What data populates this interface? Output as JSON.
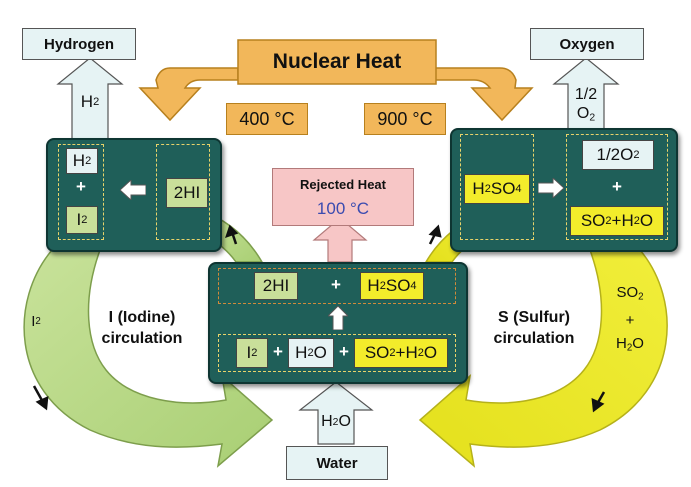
{
  "heat_source": {
    "label": "Nuclear Heat",
    "temp_left": "400 °C",
    "temp_right": "900 °C"
  },
  "products": {
    "hydrogen": "Hydrogen",
    "oxygen": "Oxygen",
    "water": "Water"
  },
  "rejected": {
    "label": "Rejected Heat",
    "temp": "100 °C"
  },
  "left_reactor": {
    "h2": "H",
    "h2_sub": "2",
    "plus": "+",
    "i2": "I",
    "i2_sub": "2",
    "hi": "2HI"
  },
  "right_reactor": {
    "h2so4_a": "H",
    "h2so4_sub1": "2",
    "h2so4_b": "SO",
    "h2so4_sub2": "4",
    "half_o2_a": "1/2O",
    "half_o2_sub": "2",
    "plus": "+",
    "so2h2o_a": "SO",
    "so2h2o_sub": "2",
    "so2h2o_b": "+H",
    "so2h2o_sub2": "2",
    "so2h2o_c": "O"
  },
  "center_reactor": {
    "hi": "2HI",
    "plus": "+",
    "h2so4_a": "H",
    "h2so4_sub1": "2",
    "h2so4_b": "SO",
    "h2so4_sub2": "4",
    "i2": "I",
    "i2_sub": "2",
    "h2o_a": "H",
    "h2o_sub": "2",
    "h2o_b": "O",
    "so2h2o_a": "SO",
    "so2h2o_sub": "2",
    "so2h2o_b": "+H",
    "so2h2o_sub2": "2",
    "so2h2o_c": "O"
  },
  "arrows": {
    "h2_a": "H",
    "h2_sub": "2",
    "o2_top": "1/2",
    "o2_a": "O",
    "o2_sub": "2",
    "water_in_a": "H",
    "water_in_sub": "2",
    "water_in_b": "O"
  },
  "cycles": {
    "iodine_line1": "I (Iodine)",
    "iodine_line2": "circulation",
    "iodine_flow_a": "I",
    "iodine_flow_sub": "2",
    "sulfur_line1": "S (Sulfur)",
    "sulfur_line2": "circulation",
    "sulfur_so_a": "SO",
    "sulfur_so_sub": "2",
    "sulfur_plus": "+",
    "sulfur_h2o_a": "H",
    "sulfur_h2o_sub": "2",
    "sulfur_h2o_b": "O"
  },
  "colors": {
    "reactor": "#1f5f59",
    "heat": "#f2b75a",
    "iodine": "#bfdc8e",
    "sulfur": "#ecea2c",
    "rejected": "#f7c6c6",
    "product": "#e6f3f4"
  }
}
